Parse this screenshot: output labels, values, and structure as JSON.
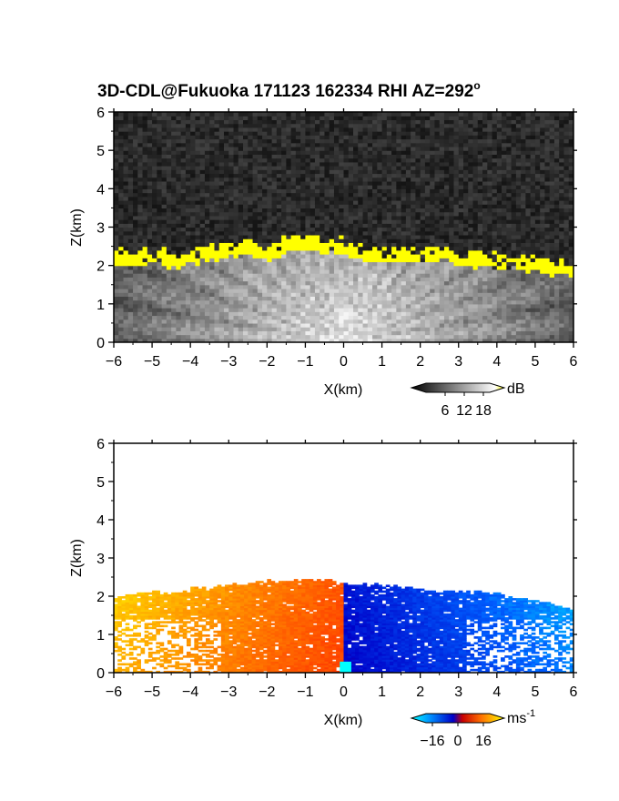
{
  "title": "3D-CDL@Fukuoka 171123 162334 RHI AZ=292",
  "title_sup": "o",
  "chart_data": [
    {
      "type": "heatmap",
      "variable": "backscatter",
      "xlabel": "X(km)",
      "ylabel": "Z(km)",
      "xlim": [
        -6,
        6
      ],
      "ylim": [
        0,
        6
      ],
      "xticks": [
        "-6",
        "-5",
        "-4",
        "-3",
        "-2",
        "-1",
        "0",
        "1",
        "2",
        "3",
        "4",
        "5",
        "6"
      ],
      "yticks": [
        "0",
        "1",
        "2",
        "3",
        "4",
        "5",
        "6"
      ],
      "colorbar": {
        "unit": "dB",
        "ticks": [
          "6",
          "12",
          "18"
        ],
        "tick_values": [
          6,
          12,
          18
        ],
        "range": [
          0,
          20
        ],
        "colors": [
          "#000000",
          "#ffffff",
          "#ffff00"
        ]
      },
      "features": {
        "cloud_base_km": [
          [
            -6,
            2.05
          ],
          [
            -5.5,
            2.0
          ],
          [
            -5,
            2.1
          ],
          [
            -4.5,
            1.95
          ],
          [
            -4,
            2.05
          ],
          [
            -3.5,
            2.15
          ],
          [
            -3,
            2.25
          ],
          [
            -2.5,
            2.35
          ],
          [
            -2,
            2.1
          ],
          [
            -1.5,
            2.35
          ],
          [
            -1,
            2.4
          ],
          [
            -0.5,
            2.3
          ],
          [
            0,
            2.3
          ],
          [
            0.5,
            2.15
          ],
          [
            1,
            2.1
          ],
          [
            1.5,
            2.1
          ],
          [
            2,
            2.05
          ],
          [
            2.5,
            2.15
          ],
          [
            3,
            2.05
          ],
          [
            3.5,
            2.0
          ],
          [
            4,
            1.95
          ],
          [
            4.5,
            1.9
          ],
          [
            5,
            1.85
          ],
          [
            5.5,
            1.75
          ],
          [
            6,
            1.7
          ]
        ],
        "cloud_thickness_km": 0.35,
        "noise_floor_dB": 4
      }
    },
    {
      "type": "heatmap",
      "variable": "radial_velocity",
      "xlabel": "X(km)",
      "ylabel": "Z(km)",
      "xlim": [
        -6,
        6
      ],
      "ylim": [
        0,
        6
      ],
      "xticks": [
        "-6",
        "-5",
        "-4",
        "-3",
        "-2",
        "-1",
        "0",
        "1",
        "2",
        "3",
        "4",
        "5",
        "6"
      ],
      "yticks": [
        "0",
        "1",
        "2",
        "3",
        "4",
        "5",
        "6"
      ],
      "colorbar": {
        "unit": "ms",
        "unit_sup": "-1",
        "ticks": [
          "-16",
          "0",
          "16"
        ],
        "tick_values": [
          -16,
          0,
          16
        ],
        "range": [
          -20,
          20
        ],
        "colors": [
          "#00ffff",
          "#0060ff",
          "#0000c8",
          "#c80000",
          "#ff4000",
          "#ffa000",
          "#ffff00"
        ]
      },
      "features": {
        "echo_top_km": [
          [
            -6,
            2.0
          ],
          [
            -5.5,
            2.05
          ],
          [
            -5,
            2.15
          ],
          [
            -4.5,
            2.05
          ],
          [
            -4,
            2.2
          ],
          [
            -3.5,
            2.2
          ],
          [
            -3,
            2.3
          ],
          [
            -2.5,
            2.35
          ],
          [
            -2,
            2.4
          ],
          [
            -1.5,
            2.35
          ],
          [
            -1,
            2.45
          ],
          [
            -0.5,
            2.4
          ],
          [
            0,
            2.35
          ],
          [
            0.5,
            2.3
          ],
          [
            1,
            2.3
          ],
          [
            1.5,
            2.25
          ],
          [
            2,
            2.2
          ],
          [
            2.5,
            2.15
          ],
          [
            3,
            2.15
          ],
          [
            3.5,
            2.1
          ],
          [
            4,
            2.05
          ],
          [
            4.5,
            1.95
          ],
          [
            5,
            1.9
          ],
          [
            5.5,
            1.75
          ],
          [
            6,
            1.65
          ]
        ],
        "velocity_at_left_edge": 17,
        "velocity_near_origin": 8,
        "velocity_at_right_edge": -17
      }
    }
  ]
}
